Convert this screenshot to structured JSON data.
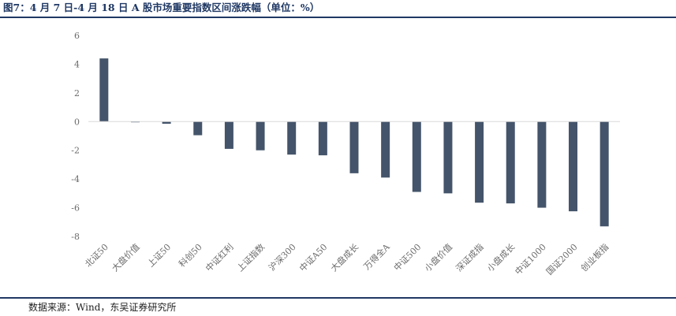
{
  "figure": {
    "title": "图7：4 月 7 日-4 月 18 日 A 股市场重要指数区间涨跌幅（单位：%）",
    "source": "数据来源：Wind，东吴证券研究所"
  },
  "chart_data": {
    "type": "bar",
    "title": "",
    "xlabel": "",
    "ylabel": "",
    "categories": [
      "北证50",
      "大盘价值",
      "上证50",
      "科创50",
      "中证红利",
      "上证指数",
      "沪深300",
      "中证A50",
      "大盘成长",
      "万得全A",
      "中证500",
      "小盘价值",
      "深证成指",
      "小盘成长",
      "中证1000",
      "国证2000",
      "创业板指"
    ],
    "values": [
      4.4,
      -0.05,
      -0.15,
      -0.95,
      -1.9,
      -2.0,
      -2.3,
      -2.35,
      -3.6,
      -3.9,
      -4.9,
      -5.0,
      -5.65,
      -5.7,
      -6.0,
      -6.25,
      -7.3
    ],
    "ylim": [
      -8,
      6
    ],
    "yticks": [
      -8,
      -6,
      -4,
      -2,
      0,
      2,
      4,
      6
    ],
    "grid": false,
    "legend": "none",
    "bar_color": "#44546a",
    "axis_color": "#d9d9d9"
  }
}
